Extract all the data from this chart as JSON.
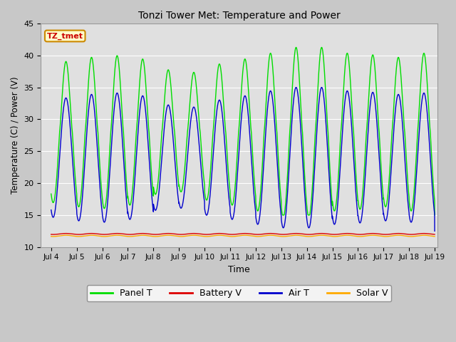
{
  "title": "Tonzi Tower Met: Temperature and Power",
  "xlabel": "Time",
  "ylabel": "Temperature (C) / Power (V)",
  "ylim": [
    10,
    45
  ],
  "xlim_days": [
    3.6,
    19.1
  ],
  "x_ticks": [
    4,
    5,
    6,
    7,
    8,
    9,
    10,
    11,
    12,
    13,
    14,
    15,
    16,
    17,
    18,
    19
  ],
  "x_tick_labels": [
    "Jul 4",
    "Jul 5",
    "Jul 6",
    "Jul 7",
    "Jul 8",
    "Jul 9",
    "Jul 10",
    "Jul 11",
    "Jul 12",
    "Jul 13",
    "Jul 14",
    "Jul 15",
    "Jul 16",
    "Jul 17",
    "Jul 18",
    "Jul 19"
  ],
  "fig_bg_color": "#c8c8c8",
  "plot_bg_color": "#e0e0e0",
  "grid_color": "#ffffff",
  "legend_label_box": "TZ_tmet",
  "legend_box_bg": "#ffffcc",
  "legend_box_border": "#cc8800",
  "series": {
    "panel_t": {
      "color": "#00dd00",
      "label": "Panel T"
    },
    "battery_v": {
      "color": "#dd0000",
      "label": "Battery V"
    },
    "air_t": {
      "color": "#0000cc",
      "label": "Air T"
    },
    "solar_v": {
      "color": "#ffaa00",
      "label": "Solar V"
    }
  },
  "battery_base": 12.05,
  "solar_base": 11.75,
  "battery_amp": 0.08,
  "solar_amp": 0.1
}
